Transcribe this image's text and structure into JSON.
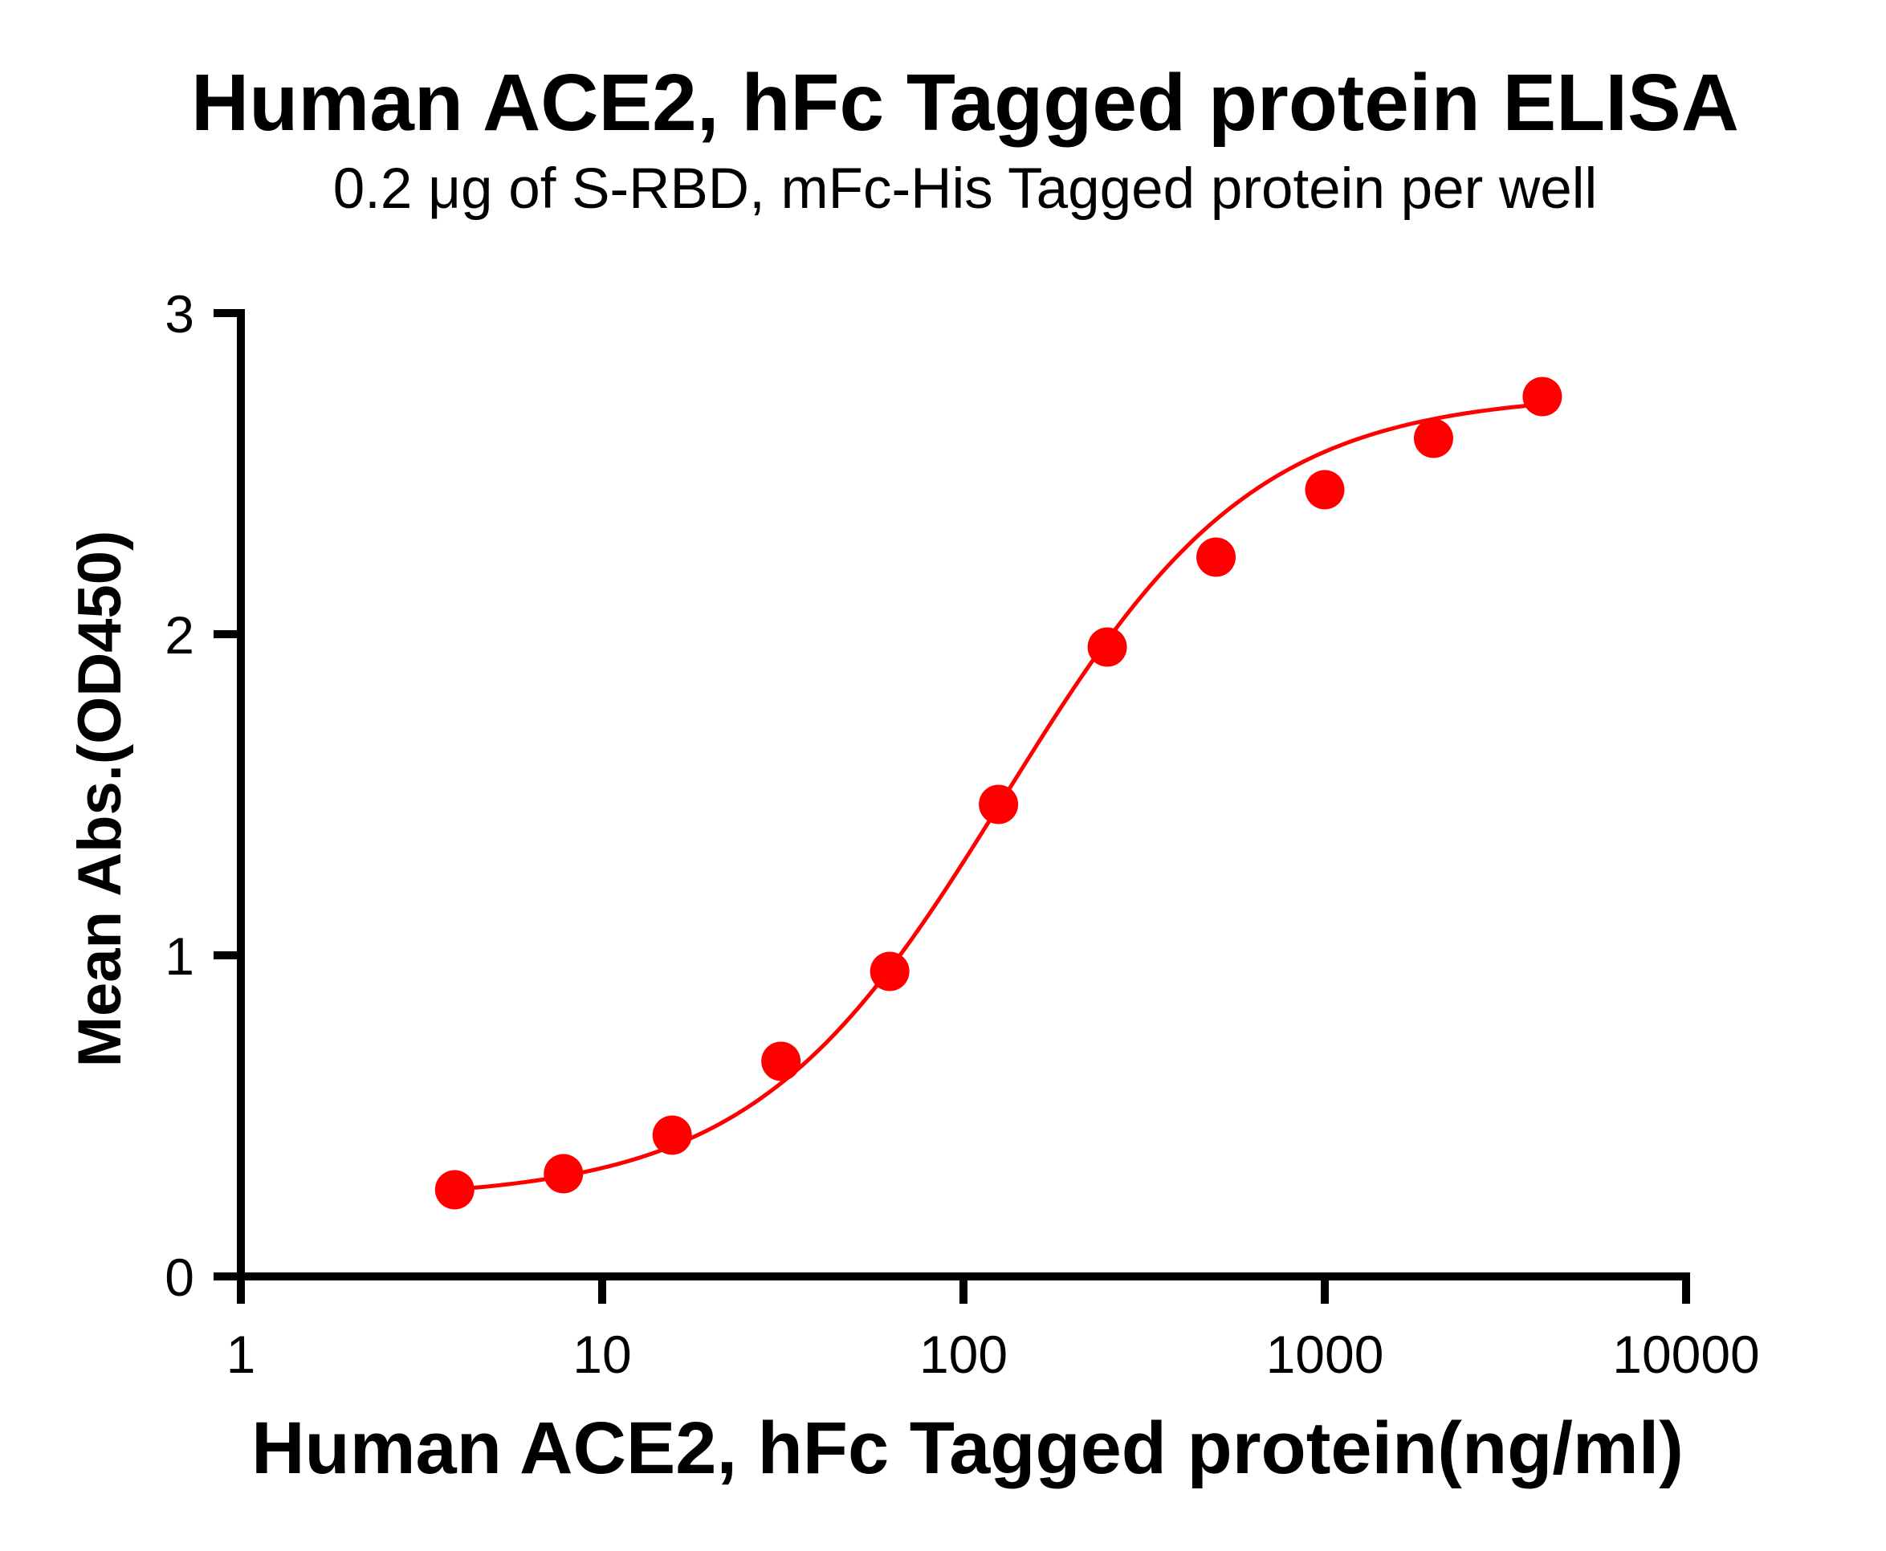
{
  "chart_data": {
    "type": "scatter",
    "title": "Human ACE2, hFc Tagged protein ELISA",
    "subtitle": "0.2 μg of S-RBD, mFc-His Tagged protein per well",
    "xlabel": "Human ACE2, hFc Tagged protein(ng/ml)",
    "ylabel": "Mean Abs.(OD450)",
    "xscale": "log",
    "xlim": [
      1,
      10000
    ],
    "ylim": [
      0,
      3
    ],
    "x_ticks": [
      1,
      10,
      100,
      1000,
      10000
    ],
    "x_tick_labels": [
      "1",
      "10",
      "100",
      "1000",
      "10000"
    ],
    "y_ticks": [
      0,
      1,
      2,
      3
    ],
    "y_tick_labels": [
      "0",
      "1",
      "2",
      "3"
    ],
    "grid": false,
    "legend": null,
    "series": [
      {
        "name": "Human ACE2, hFc Tagged protein",
        "color": "#FF0000",
        "marker": "circle",
        "x": [
          3.906,
          7.813,
          15.625,
          31.25,
          62.5,
          125,
          250,
          500,
          1000,
          2000,
          4000
        ],
        "y": [
          0.27,
          0.32,
          0.44,
          0.67,
          0.95,
          1.47,
          1.96,
          2.24,
          2.45,
          2.61,
          2.74
        ],
        "fit": {
          "model": "4PL",
          "bottom": 0.24,
          "top": 2.75,
          "ec50": 130,
          "hill": 1.25,
          "x_range": [
            3.906,
            4000
          ]
        }
      }
    ]
  }
}
